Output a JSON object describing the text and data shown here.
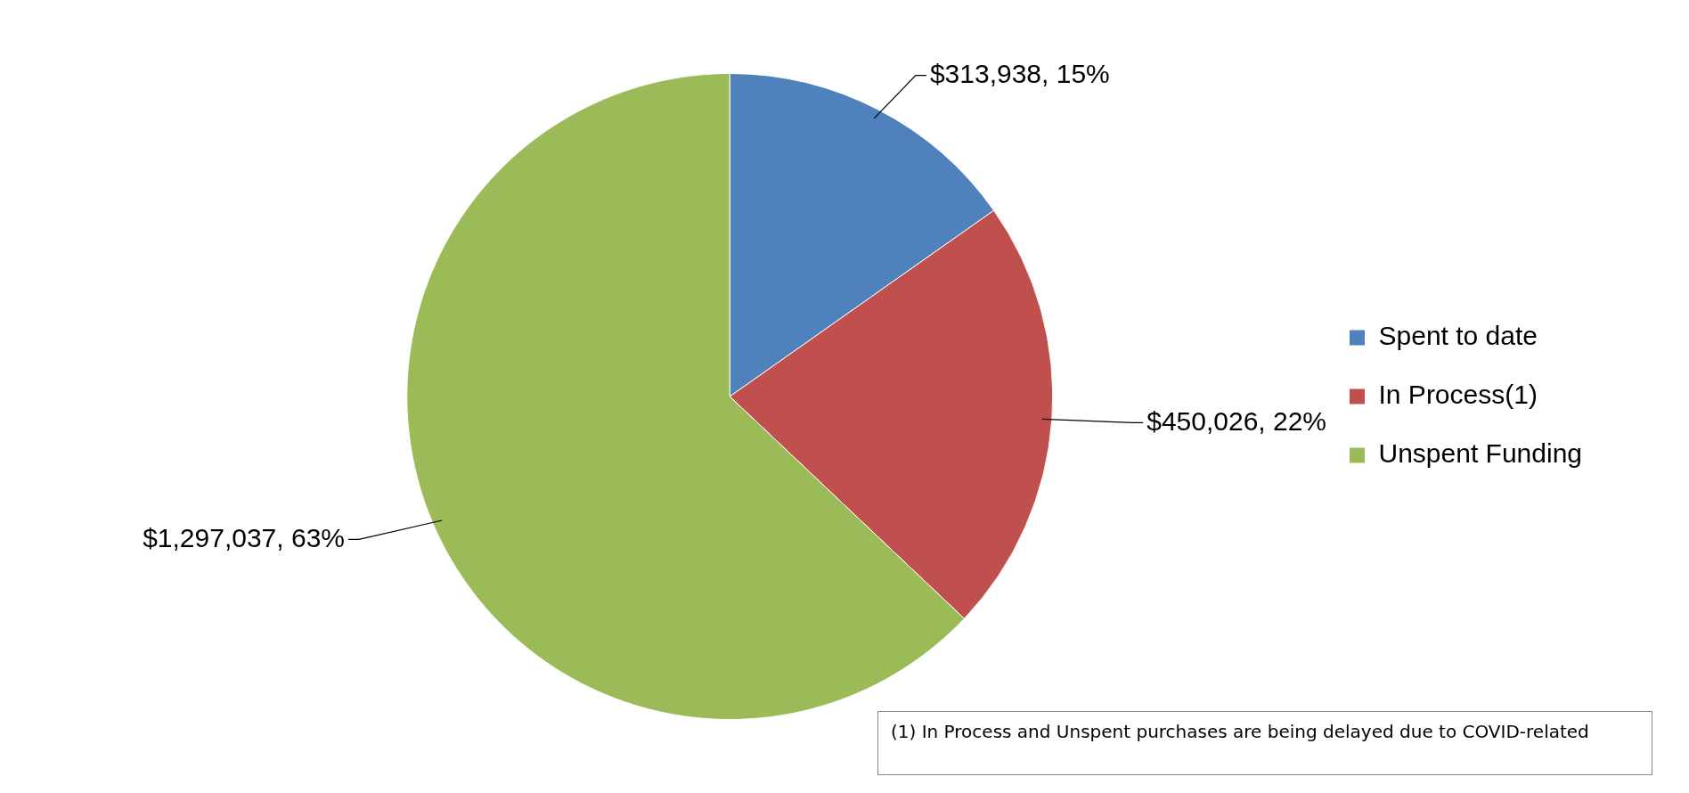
{
  "chart_data": {
    "type": "pie",
    "categories": [
      "Spent to date",
      "In Process(1)",
      "Unspent Funding"
    ],
    "values": [
      313938,
      450026,
      1297037
    ],
    "colors": [
      "#4f81bd",
      "#c0504d",
      "#9bbb59"
    ],
    "value_labels": [
      "$313,938, 15%",
      "$450,026, 22%",
      "$1,297,037, 63%"
    ],
    "legend": "right",
    "annotations": [
      "(1) In Process and Unspent purchases are being delayed due to COVID-related"
    ]
  }
}
